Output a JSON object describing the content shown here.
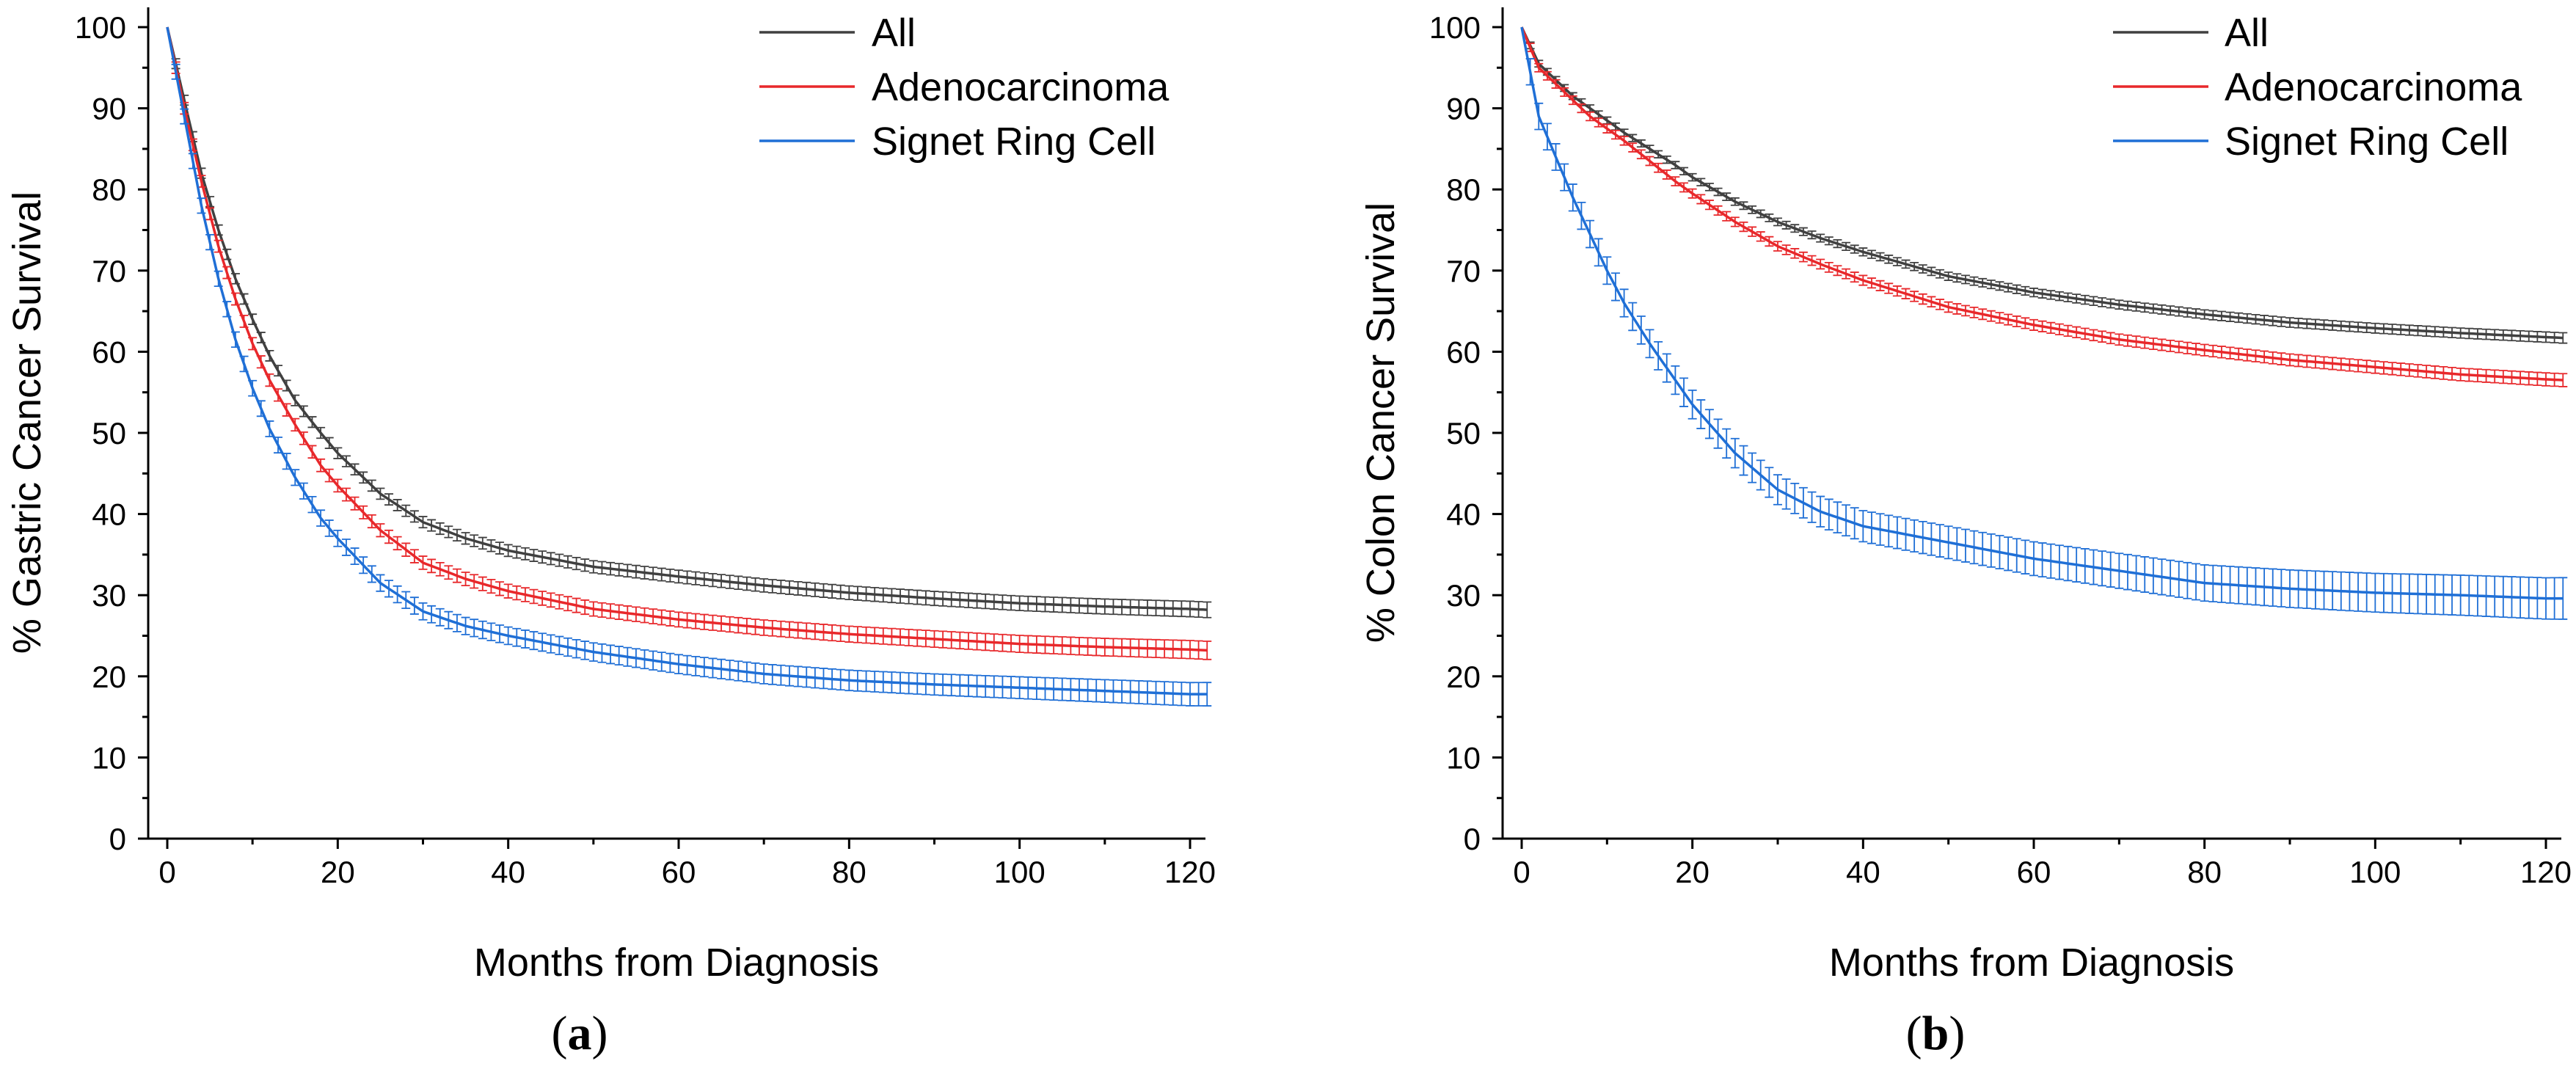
{
  "colors": {
    "all": "#404040",
    "adeno": "#e8282b",
    "signet": "#1f6fd6"
  },
  "chart_data": [
    {
      "type": "line",
      "panel_label": "a",
      "title": "",
      "xlabel": "Months from Diagnosis",
      "ylabel": "% Gastric Cancer Survival",
      "xlim": [
        0,
        123
      ],
      "ylim": [
        0,
        100
      ],
      "xticks": [
        0,
        20,
        40,
        60,
        80,
        100,
        120
      ],
      "yticks": [
        0,
        10,
        20,
        30,
        40,
        50,
        60,
        70,
        80,
        90,
        100
      ],
      "legend": {
        "placement": "top-right",
        "entries": [
          "All",
          "Adenocarcinoma",
          "Signet Ring Cell"
        ]
      },
      "x": [
        0,
        2,
        4,
        6,
        8,
        10,
        12,
        15,
        18,
        20,
        25,
        30,
        35,
        40,
        50,
        60,
        70,
        80,
        90,
        100,
        110,
        120,
        122
      ],
      "series": [
        {
          "name": "All",
          "color_key": "all",
          "err": 0.6,
          "values": [
            100,
            91,
            82,
            75,
            69,
            64,
            59.5,
            54,
            50,
            47.5,
            42.5,
            39,
            37,
            35.5,
            33.5,
            32.3,
            31.2,
            30.3,
            29.6,
            29.0,
            28.6,
            28.3,
            28.2
          ]
        },
        {
          "name": "Adenocarcinoma",
          "color_key": "adeno",
          "err": 0.7,
          "values": [
            100,
            90,
            81,
            73,
            66.5,
            61,
            56.5,
            51,
            46,
            43.5,
            38,
            34,
            32,
            30.5,
            28.3,
            27,
            26,
            25.2,
            24.6,
            24,
            23.6,
            23.3,
            23.2
          ]
        },
        {
          "name": "Signet Ring Cell",
          "color_key": "signet",
          "err": 0.9,
          "values": [
            100,
            89,
            78,
            69,
            61.5,
            55.5,
            50.5,
            44.5,
            39.5,
            37,
            31.5,
            28,
            26.2,
            25,
            23,
            21.5,
            20.3,
            19.5,
            19,
            18.6,
            18.2,
            17.8,
            17.8
          ]
        }
      ]
    },
    {
      "type": "line",
      "panel_label": "b",
      "title": "",
      "xlabel": "Months from Diagnosis",
      "ylabel": "% Colon Cancer Survival",
      "xlim": [
        0,
        123
      ],
      "ylim": [
        0,
        100
      ],
      "xticks": [
        0,
        20,
        40,
        60,
        80,
        100,
        120
      ],
      "yticks": [
        0,
        10,
        20,
        30,
        40,
        50,
        60,
        70,
        80,
        90,
        100
      ],
      "legend": {
        "placement": "top-right",
        "entries": [
          "All",
          "Adenocarcinoma",
          "Signet Ring Cell"
        ]
      },
      "x": [
        0,
        2,
        4,
        6,
        8,
        10,
        12,
        15,
        18,
        20,
        25,
        30,
        35,
        40,
        50,
        60,
        70,
        80,
        90,
        100,
        110,
        120,
        122
      ],
      "series": [
        {
          "name": "All",
          "color_key": "all",
          "err": 0.4,
          "values": [
            100,
            95.5,
            93.5,
            91.5,
            90,
            88.5,
            87,
            85,
            83,
            81.5,
            78.5,
            76,
            74,
            72.3,
            69.3,
            67.3,
            65.8,
            64.6,
            63.6,
            62.9,
            62.3,
            61.8,
            61.7
          ]
        },
        {
          "name": "Adenocarcinoma",
          "color_key": "adeno",
          "err": 0.5,
          "values": [
            100,
            95,
            93,
            91,
            89,
            87.5,
            86,
            83.5,
            81,
            79.5,
            76,
            73,
            70.8,
            68.8,
            65.5,
            63.3,
            61.5,
            60.2,
            59,
            58.1,
            57.2,
            56.6,
            56.5
          ]
        },
        {
          "name": "Signet Ring Cell",
          "color_key": "signet",
          "err": 1.6,
          "values": [
            100,
            89,
            84,
            79,
            74.5,
            70,
            66,
            61,
            56.5,
            53.5,
            47.5,
            43,
            40.3,
            38.5,
            36.5,
            34.5,
            33,
            31.5,
            30.8,
            30.3,
            30,
            29.6,
            29.6
          ]
        }
      ]
    }
  ]
}
